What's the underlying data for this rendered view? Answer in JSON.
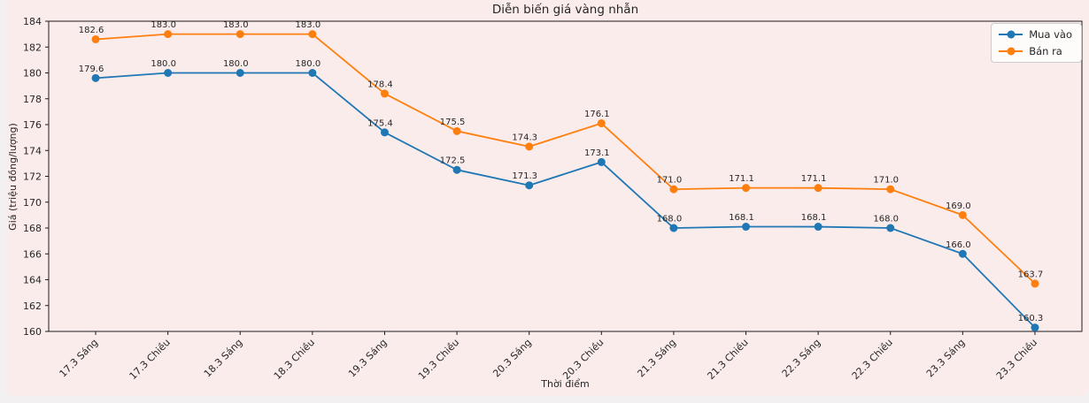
{
  "chart_data": {
    "type": "line",
    "title": "Diễn biến giá vàng nhẫn",
    "xlabel": "Thời điểm",
    "ylabel": "Giá (triệu đồng/lượng)",
    "categories": [
      "17.3 Sáng",
      "17.3 Chiều",
      "18.3 Sáng",
      "18.3 Chiều",
      "19.3 Sáng",
      "19.3 Chiều",
      "20.3 Sáng",
      "20.3 Chiều",
      "21.3 Sáng",
      "21.3 Chiều",
      "22.3 Sáng",
      "22.3 Chiều",
      "23.3 Sáng",
      "23.3 Chiều"
    ],
    "series": [
      {
        "name": "Mua vào",
        "color": "#1f77b4",
        "values": [
          179.6,
          180.0,
          180.0,
          180.0,
          175.4,
          172.5,
          171.3,
          173.1,
          168.0,
          168.1,
          168.1,
          168.0,
          166.0,
          160.3
        ]
      },
      {
        "name": "Bán ra",
        "color": "#ff7f0e",
        "values": [
          182.6,
          183.0,
          183.0,
          183.0,
          178.4,
          175.5,
          174.3,
          176.1,
          171.0,
          171.1,
          171.1,
          171.0,
          169.0,
          163.7
        ]
      }
    ],
    "ylim": [
      160,
      184
    ],
    "yticks": [
      160,
      162,
      164,
      166,
      168,
      170,
      172,
      174,
      176,
      178,
      180,
      182,
      184
    ],
    "grid": false,
    "legend_position": "upper right",
    "point_labels": true,
    "value_format_decimals": 1,
    "colors": {
      "figure_background": "#fbecec",
      "page_background": "#f3f0f1",
      "spine": "#1c1c1c",
      "text": "#262626",
      "legend_border": "#cccccc"
    }
  }
}
